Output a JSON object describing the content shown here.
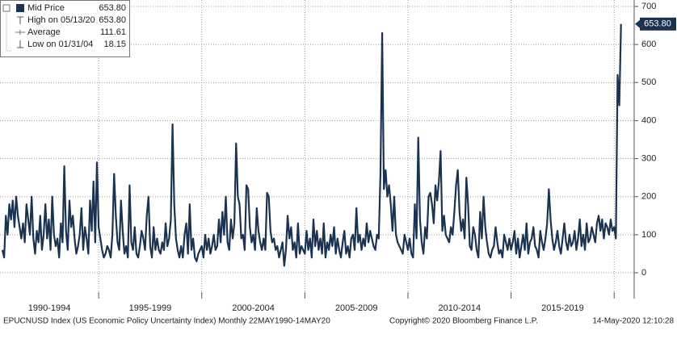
{
  "chart_data": {
    "type": "line",
    "legend": [
      {
        "label": "Mid Price",
        "value": "653.80"
      },
      {
        "label": "High on 05/13/20",
        "value": "653.80"
      },
      {
        "label": "Average",
        "value": "111.61"
      },
      {
        "label": "Low on 01/31/04",
        "value": "18.15"
      }
    ],
    "period_labels": [
      "1990-1994",
      "1995-1999",
      "2000-2004",
      "2005-2009",
      "2010-2014",
      "2015-2019"
    ],
    "footer": [
      "EPUCNUSD Index (US Economic Policy Uncertainty Index)  Monthly 22MAY1990-14MAY20",
      "Copyright© 2020 Bloomberg Finance L.P.",
      "14-May-2020 12:10:28"
    ],
    "ylim": [
      0,
      700
    ],
    "yticks": [
      0,
      100,
      200,
      300,
      400,
      500,
      600,
      700
    ],
    "grid": true,
    "series": [
      {
        "name": "Mid Price",
        "color": "#1b3350",
        "values": [
          60,
          40,
          150,
          100,
          180,
          140,
          190,
          120,
          200,
          150,
          120,
          90,
          130,
          80,
          180,
          140,
          100,
          200,
          90,
          50,
          110,
          80,
          150,
          60,
          100,
          180,
          90,
          140,
          60,
          200,
          100,
          70,
          90,
          40,
          130,
          80,
          280,
          110,
          60,
          190,
          120,
          150,
          90,
          50,
          70,
          100,
          170,
          60,
          120,
          90,
          50,
          190,
          110,
          240,
          80,
          290,
          120,
          90,
          60,
          40,
          50,
          70,
          60,
          40,
          100,
          260,
          150,
          80,
          60,
          190,
          110,
          50,
          70,
          40,
          230,
          80,
          60,
          120,
          50,
          40,
          70,
          110,
          90,
          60,
          150,
          200,
          70,
          40,
          120,
          60,
          90,
          60,
          50,
          80,
          60,
          130,
          70,
          90,
          140,
          390,
          180,
          90,
          60,
          40,
          70,
          40,
          100,
          130,
          50,
          180,
          60,
          90,
          40,
          30,
          50,
          60,
          70,
          40,
          100,
          60,
          90,
          50,
          70,
          100,
          60,
          70,
          140,
          80,
          160,
          100,
          200,
          80,
          60,
          140,
          90,
          130,
          340,
          200,
          180,
          90,
          100,
          60,
          230,
          220,
          120,
          80,
          100,
          60,
          170,
          110,
          80,
          60,
          90,
          60,
          210,
          200,
          110,
          80,
          90,
          60,
          70,
          40,
          60,
          80,
          18.15,
          60,
          150,
          90,
          120,
          60,
          80,
          40,
          130,
          50,
          70,
          60,
          50,
          110,
          60,
          90,
          40,
          140,
          70,
          110,
          60,
          90,
          50,
          130,
          40,
          80,
          60,
          100,
          70,
          120,
          50,
          90,
          60,
          40,
          80,
          110,
          50,
          70,
          40,
          90,
          100,
          60,
          170,
          80,
          100,
          60,
          90,
          70,
          130,
          80,
          110,
          90,
          70,
          60,
          100,
          90,
          260,
          630,
          220,
          270,
          200,
          230,
          180,
          110,
          200,
          100,
          80,
          70,
          60,
          50,
          100,
          80,
          60,
          90,
          50,
          40,
          180,
          90,
          355,
          140,
          80,
          50,
          120,
          90,
          200,
          210,
          180,
          130,
          230,
          190,
          240,
          320,
          110,
          150,
          100,
          90,
          80,
          120,
          100,
          160,
          230,
          270,
          160,
          110,
          140,
          90,
          250,
          180,
          70,
          60,
          120,
          100,
          60,
          40,
          160,
          90,
          200,
          120,
          80,
          50,
          40,
          60,
          70,
          120,
          80,
          50,
          60,
          40,
          100,
          80,
          60,
          90,
          60,
          80,
          110,
          50,
          90,
          40,
          70,
          100,
          60,
          130,
          50,
          80,
          90,
          120,
          70,
          60,
          40,
          110,
          80,
          60,
          90,
          130,
          220,
          140,
          90,
          60,
          80,
          110,
          70,
          50,
          90,
          130,
          80,
          60,
          100,
          70,
          80,
          110,
          60,
          90,
          140,
          70,
          100,
          60,
          130,
          80,
          90,
          120,
          100,
          80,
          130,
          150,
          110,
          140,
          90,
          130,
          120,
          100,
          140,
          110,
          120,
          90,
          520,
          440,
          653.8
        ]
      }
    ]
  }
}
